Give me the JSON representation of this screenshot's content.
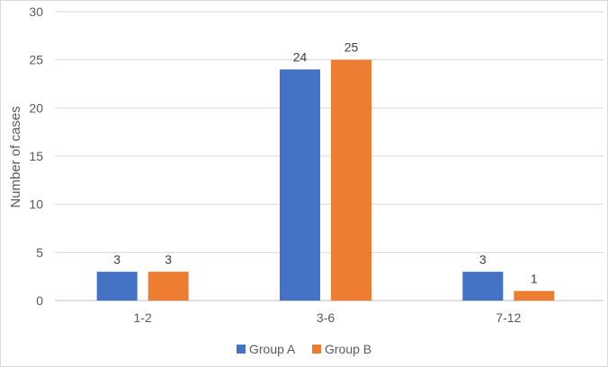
{
  "chart_data": {
    "type": "bar",
    "title": "",
    "xlabel": "",
    "ylabel": "Number of cases",
    "categories": [
      "1-2",
      "3-6",
      "7-12"
    ],
    "series": [
      {
        "name": "Group A",
        "values": [
          3,
          24,
          3
        ],
        "color": "#4472c4"
      },
      {
        "name": "Group B",
        "values": [
          3,
          25,
          1
        ],
        "color": "#ed7d31"
      }
    ],
    "ylim": [
      0,
      30
    ],
    "yticks": [
      0,
      5,
      10,
      15,
      20,
      25,
      30
    ],
    "grid": true,
    "legend": "bottom",
    "data_labels": true
  }
}
